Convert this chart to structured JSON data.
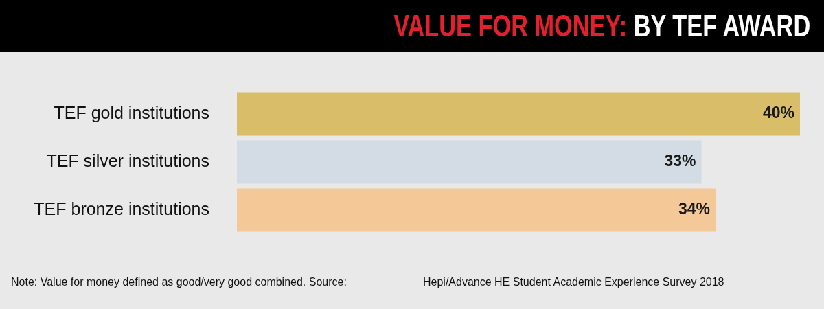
{
  "chart_data": {
    "type": "bar",
    "orientation": "horizontal",
    "title": "VALUE FOR MONEY: BY TEF AWARD",
    "categories": [
      "TEF gold institutions",
      "TEF silver institutions",
      "TEF bronze institutions"
    ],
    "values": [
      40,
      33,
      34
    ],
    "colors": [
      "#d9bd68",
      "#d3dbe5",
      "#f5c898"
    ],
    "value_labels": [
      "40%",
      "33%",
      "34%"
    ],
    "xlim": [
      0,
      40
    ],
    "tick_labels": "y",
    "grid": false,
    "legend": false,
    "annotations": [
      "Note: Value for money defined as good/very good combined. Source:",
      "Hepi/Advance HE Student Academic Experience Survey 2018"
    ]
  }
}
